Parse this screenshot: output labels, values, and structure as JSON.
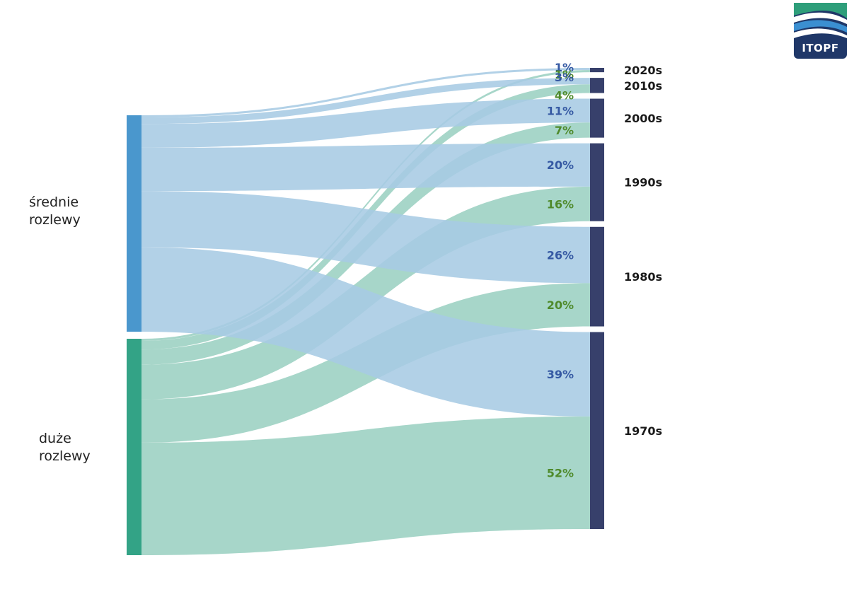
{
  "logo": {
    "text": "ITOPF"
  },
  "colors": {
    "medium_node": "#4a97cd",
    "large_node": "#33a386",
    "medium_flow": "#a7cbe4",
    "large_flow": "#98cfbf",
    "decade_node": "#37406b",
    "medium_pct": "#3559a3",
    "large_pct": "#4f8a2b",
    "decade_label": "#1a1a1a"
  },
  "chart_data": {
    "type": "sankey",
    "sources": [
      {
        "id": "medium",
        "label": "średnie\nrozlewy"
      },
      {
        "id": "large",
        "label": "duże\nrozlewy"
      }
    ],
    "targets": [
      "2020s",
      "2010s",
      "2000s",
      "1990s",
      "1980s",
      "1970s"
    ],
    "flows": {
      "medium": [
        {
          "target": "2020s",
          "percent": 1,
          "label": "1%"
        },
        {
          "target": "2010s",
          "percent": 3,
          "label": "3%"
        },
        {
          "target": "2000s",
          "percent": 11,
          "label": "11%"
        },
        {
          "target": "1990s",
          "percent": 20,
          "label": "20%"
        },
        {
          "target": "1980s",
          "percent": 26,
          "label": "26%"
        },
        {
          "target": "1970s",
          "percent": 39,
          "label": "39%"
        }
      ],
      "large": [
        {
          "target": "2020s",
          "percent": 1,
          "label": "1%"
        },
        {
          "target": "2010s",
          "percent": 4,
          "label": "4%"
        },
        {
          "target": "2000s",
          "percent": 7,
          "label": "7%"
        },
        {
          "target": "1990s",
          "percent": 16,
          "label": "16%"
        },
        {
          "target": "1980s",
          "percent": 20,
          "label": "20%"
        },
        {
          "target": "1970s",
          "percent": 52,
          "label": "52%"
        }
      ]
    }
  }
}
